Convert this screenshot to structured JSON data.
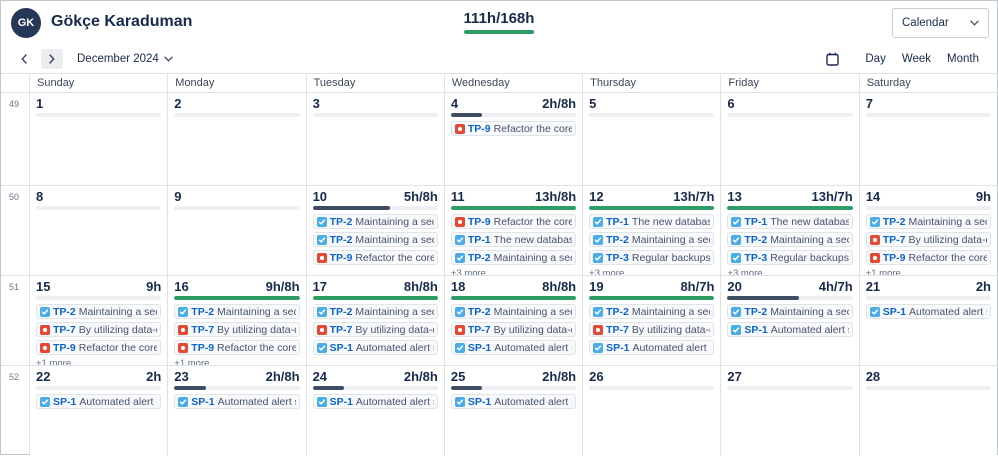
{
  "header": {
    "avatar_initials": "GK",
    "user_name": "Gökçe Karaduman",
    "logged_total": "111h/168h",
    "view_selector_value": "Calendar"
  },
  "toolbar": {
    "period": "December 2024",
    "views": [
      "Day",
      "Week",
      "Month"
    ]
  },
  "colors": {
    "met_bar": "#2c9d64",
    "partial_bar": "#3e4d64",
    "task_icon": "#4bade8",
    "bug_icon": "#e34935",
    "issue_key_blue": "#0b63cf"
  },
  "calendar": {
    "day_headers": [
      "Sunday",
      "Monday",
      "Tuesday",
      "Wednesday",
      "Thursday",
      "Friday",
      "Saturday"
    ],
    "weeks": [
      {
        "num": "49",
        "days": [
          {
            "date": "1",
            "hours": "",
            "bar": "track",
            "pct": 0,
            "events": [],
            "more": ""
          },
          {
            "date": "2",
            "hours": "",
            "bar": "track",
            "pct": 0,
            "events": [],
            "more": ""
          },
          {
            "date": "3",
            "hours": "",
            "bar": "track",
            "pct": 0,
            "events": [],
            "more": ""
          },
          {
            "date": "4",
            "hours": "2h/8h",
            "bar": "partial",
            "pct": 25,
            "events": [
              {
                "type": "bug",
                "key": "TP-9",
                "summary": "Refactor the core API to"
              }
            ],
            "more": ""
          },
          {
            "date": "5",
            "hours": "",
            "bar": "track",
            "pct": 0,
            "events": [],
            "more": ""
          },
          {
            "date": "6",
            "hours": "",
            "bar": "track",
            "pct": 0,
            "events": [],
            "more": ""
          },
          {
            "date": "7",
            "hours": "",
            "bar": "track",
            "pct": 0,
            "events": [],
            "more": ""
          }
        ]
      },
      {
        "num": "50",
        "days": [
          {
            "date": "8",
            "hours": "",
            "bar": "track",
            "pct": 0,
            "events": [],
            "more": ""
          },
          {
            "date": "9",
            "hours": "",
            "bar": "track",
            "pct": 0,
            "events": [],
            "more": ""
          },
          {
            "date": "10",
            "hours": "5h/8h",
            "bar": "partial",
            "pct": 62,
            "events": [
              {
                "type": "task",
                "key": "TP-2",
                "summary": "Maintaining a secure ar"
              },
              {
                "type": "task",
                "key": "TP-2",
                "summary": "Maintaining a secure ar"
              },
              {
                "type": "bug",
                "key": "TP-9",
                "summary": "Refactor the core API to"
              }
            ],
            "more": ""
          },
          {
            "date": "11",
            "hours": "13h/8h",
            "bar": "full",
            "pct": 100,
            "events": [
              {
                "type": "bug",
                "key": "TP-9",
                "summary": "Refactor the core API to"
              },
              {
                "type": "task",
                "key": "TP-1",
                "summary": "The new database schem"
              },
              {
                "type": "task",
                "key": "TP-2",
                "summary": "Maintaining a secure ar"
              }
            ],
            "more": "+3 more"
          },
          {
            "date": "12",
            "hours": "13h/7h",
            "bar": "full",
            "pct": 100,
            "events": [
              {
                "type": "task",
                "key": "TP-1",
                "summary": "The new database schem"
              },
              {
                "type": "task",
                "key": "TP-2",
                "summary": "Maintaining a secure ar"
              },
              {
                "type": "task",
                "key": "TP-3",
                "summary": "Regular backups and op"
              }
            ],
            "more": "+3 more"
          },
          {
            "date": "13",
            "hours": "13h/7h",
            "bar": "full",
            "pct": 100,
            "events": [
              {
                "type": "task",
                "key": "TP-1",
                "summary": "The new database schem"
              },
              {
                "type": "task",
                "key": "TP-2",
                "summary": "Maintaining a secure ar"
              },
              {
                "type": "task",
                "key": "TP-3",
                "summary": "Regular backups and op"
              }
            ],
            "more": "+3 more"
          },
          {
            "date": "14",
            "hours": "9h",
            "bar": "track",
            "pct": 0,
            "events": [
              {
                "type": "task",
                "key": "TP-2",
                "summary": "Maintaining a secure ar"
              },
              {
                "type": "bug",
                "key": "TP-7",
                "summary": "By utilizing data-driven"
              },
              {
                "type": "bug",
                "key": "TP-9",
                "summary": "Refactor the core API to"
              }
            ],
            "more": "+1 more"
          }
        ]
      },
      {
        "num": "51",
        "days": [
          {
            "date": "15",
            "hours": "9h",
            "bar": "track",
            "pct": 0,
            "events": [
              {
                "type": "task",
                "key": "TP-2",
                "summary": "Maintaining a secure ar"
              },
              {
                "type": "bug",
                "key": "TP-7",
                "summary": "By utilizing data-driven"
              },
              {
                "type": "bug",
                "key": "TP-9",
                "summary": "Refactor the core API to"
              }
            ],
            "more": "+1 more"
          },
          {
            "date": "16",
            "hours": "9h/8h",
            "bar": "full",
            "pct": 100,
            "events": [
              {
                "type": "task",
                "key": "TP-2",
                "summary": "Maintaining a secure ar"
              },
              {
                "type": "bug",
                "key": "TP-7",
                "summary": "By utilizing data-driven"
              },
              {
                "type": "bug",
                "key": "TP-9",
                "summary": "Refactor the core API to"
              }
            ],
            "more": "+1 more"
          },
          {
            "date": "17",
            "hours": "8h/8h",
            "bar": "full",
            "pct": 100,
            "events": [
              {
                "type": "task",
                "key": "TP-2",
                "summary": "Maintaining a secure ar"
              },
              {
                "type": "bug",
                "key": "TP-7",
                "summary": "By utilizing data-driven"
              },
              {
                "type": "task",
                "key": "SP-1",
                "summary": "Automated alert system"
              }
            ],
            "more": ""
          },
          {
            "date": "18",
            "hours": "8h/8h",
            "bar": "full",
            "pct": 100,
            "events": [
              {
                "type": "task",
                "key": "TP-2",
                "summary": "Maintaining a secure ar"
              },
              {
                "type": "bug",
                "key": "TP-7",
                "summary": "By utilizing data-driven"
              },
              {
                "type": "task",
                "key": "SP-1",
                "summary": "Automated alert system"
              }
            ],
            "more": ""
          },
          {
            "date": "19",
            "hours": "8h/7h",
            "bar": "full",
            "pct": 100,
            "events": [
              {
                "type": "task",
                "key": "TP-2",
                "summary": "Maintaining a secure ar"
              },
              {
                "type": "bug",
                "key": "TP-7",
                "summary": "By utilizing data-driven"
              },
              {
                "type": "task",
                "key": "SP-1",
                "summary": "Automated alert system"
              }
            ],
            "more": ""
          },
          {
            "date": "20",
            "hours": "4h/7h",
            "bar": "partial",
            "pct": 57,
            "events": [
              {
                "type": "task",
                "key": "TP-2",
                "summary": "Maintaining a secure ar"
              },
              {
                "type": "task",
                "key": "SP-1",
                "summary": "Automated alert system"
              }
            ],
            "more": ""
          },
          {
            "date": "21",
            "hours": "2h",
            "bar": "track",
            "pct": 0,
            "events": [
              {
                "type": "task",
                "key": "SP-1",
                "summary": "Automated alert system"
              }
            ],
            "more": ""
          }
        ]
      },
      {
        "num": "52",
        "days": [
          {
            "date": "22",
            "hours": "2h",
            "bar": "track",
            "pct": 0,
            "events": [
              {
                "type": "task",
                "key": "SP-1",
                "summary": "Automated alert system"
              }
            ],
            "more": ""
          },
          {
            "date": "23",
            "hours": "2h/8h",
            "bar": "partial",
            "pct": 25,
            "events": [
              {
                "type": "task",
                "key": "SP-1",
                "summary": "Automated alert system"
              }
            ],
            "more": ""
          },
          {
            "date": "24",
            "hours": "2h/8h",
            "bar": "partial",
            "pct": 25,
            "events": [
              {
                "type": "task",
                "key": "SP-1",
                "summary": "Automated alert system"
              }
            ],
            "more": ""
          },
          {
            "date": "25",
            "hours": "2h/8h",
            "bar": "partial",
            "pct": 25,
            "events": [
              {
                "type": "task",
                "key": "SP-1",
                "summary": "Automated alert system"
              }
            ],
            "more": ""
          },
          {
            "date": "26",
            "hours": "",
            "bar": "track",
            "pct": 0,
            "events": [],
            "more": ""
          },
          {
            "date": "27",
            "hours": "",
            "bar": "track",
            "pct": 0,
            "events": [],
            "more": ""
          },
          {
            "date": "28",
            "hours": "",
            "bar": "track",
            "pct": 0,
            "events": [],
            "more": ""
          }
        ]
      }
    ]
  }
}
